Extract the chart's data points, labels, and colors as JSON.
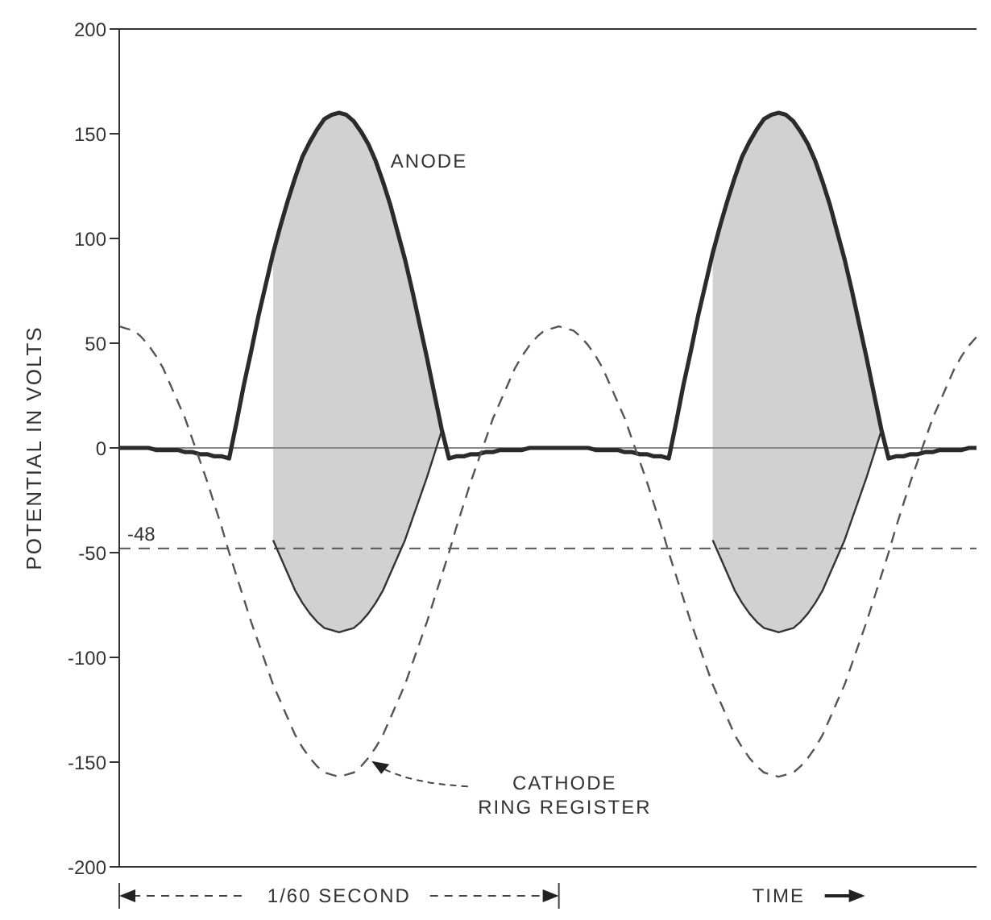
{
  "chart_data": {
    "type": "line",
    "ylabel": "POTENTIAL IN VOLTS",
    "tick_labels": "y",
    "marker": "none",
    "ylim": [
      -200,
      200
    ],
    "yticks": [
      -200,
      -150,
      -100,
      -50,
      0,
      50,
      100,
      150,
      200
    ],
    "categories": [
      null,
      null,
      null,
      null,
      null,
      null,
      null,
      null,
      null,
      null,
      null,
      null,
      null,
      null,
      null,
      null,
      null,
      null,
      null,
      null,
      null,
      null,
      null,
      null,
      null,
      null,
      null,
      null,
      null,
      null,
      null,
      null,
      null,
      null,
      null,
      null,
      null,
      null,
      null,
      null,
      null,
      null,
      null,
      null,
      null,
      null,
      null,
      null,
      null,
      null,
      null,
      null,
      null,
      null,
      null,
      null,
      null,
      null,
      null,
      null,
      null,
      null,
      null,
      null,
      null,
      null,
      null,
      null,
      null,
      null,
      null,
      null,
      null,
      null,
      null,
      null,
      null,
      null,
      null,
      null,
      null,
      null,
      null,
      null,
      null,
      null,
      null,
      null,
      null,
      null,
      null,
      null,
      null,
      null,
      null,
      null,
      null,
      null,
      null,
      null,
      null,
      null,
      null,
      null,
      null,
      null,
      null,
      null,
      null,
      null,
      null,
      null,
      null,
      null,
      null,
      null,
      null,
      null
    ],
    "series": [
      {
        "name": "ANODE",
        "color": "#2b2b2b",
        "line_style": "solid",
        "values": [
          0,
          0,
          0,
          0,
          0,
          -1,
          -1,
          -1,
          -1,
          -2,
          -2,
          -3,
          -3,
          -4,
          -4,
          -5,
          12,
          30,
          46,
          63,
          78,
          93,
          106,
          118,
          129,
          139,
          146,
          152,
          157,
          159,
          160,
          159,
          156,
          151,
          145,
          137,
          127,
          116,
          103,
          90,
          75,
          59,
          43,
          26,
          9,
          -5,
          -4,
          -4,
          -3,
          -3,
          -2,
          -2,
          -1,
          -1,
          -1,
          -1,
          0,
          0,
          0,
          0,
          0,
          0,
          0,
          0,
          0,
          -1,
          -1,
          -1,
          -1,
          -2,
          -2,
          -3,
          -3,
          -4,
          -4,
          -5,
          12,
          30,
          46,
          63,
          78,
          93,
          106,
          118,
          129,
          139,
          146,
          152,
          157,
          159,
          160,
          159,
          156,
          151,
          145,
          137,
          127,
          116,
          103,
          90,
          75,
          59,
          43,
          26,
          9,
          -5,
          -4,
          -4,
          -3,
          -3,
          -2,
          -2,
          -1,
          -1,
          -1,
          -1,
          0,
          0
        ],
        "lower": [
          null,
          null,
          null,
          null,
          null,
          null,
          null,
          null,
          null,
          null,
          null,
          null,
          null,
          null,
          null,
          null,
          null,
          null,
          null,
          null,
          null,
          -44,
          -52,
          -60,
          -68,
          -74,
          -79,
          -83,
          -86,
          -87,
          -88,
          -87,
          -86,
          -83,
          -79,
          -74,
          -68,
          -60,
          -52,
          -44,
          -34,
          -24,
          -14,
          -3,
          8,
          null,
          null,
          null,
          null,
          null,
          null,
          null,
          null,
          null,
          null,
          null,
          null,
          null,
          null,
          null,
          null,
          null,
          null,
          null,
          null,
          null,
          null,
          null,
          null,
          null,
          null,
          null,
          null,
          null,
          null,
          null,
          null,
          null,
          null,
          null,
          null,
          -44,
          -52,
          -60,
          -68,
          -74,
          -79,
          -83,
          -86,
          -87,
          -88,
          -87,
          -86,
          -83,
          -79,
          -74,
          -68,
          -60,
          -52,
          -44,
          -34,
          -24,
          -14,
          -3,
          8,
          null,
          null,
          null,
          null,
          null,
          null,
          null,
          null,
          null,
          null,
          null,
          null,
          null
        ],
        "upper": [
          null,
          null,
          null,
          null,
          null,
          null,
          null,
          null,
          null,
          null,
          null,
          null,
          null,
          null,
          null,
          null,
          null,
          null,
          null,
          null,
          null,
          93,
          106,
          118,
          129,
          139,
          146,
          152,
          157,
          159,
          160,
          159,
          156,
          151,
          145,
          137,
          127,
          116,
          103,
          90,
          75,
          59,
          43,
          26,
          9,
          null,
          null,
          null,
          null,
          null,
          null,
          null,
          null,
          null,
          null,
          null,
          null,
          null,
          null,
          null,
          null,
          null,
          null,
          null,
          null,
          null,
          null,
          null,
          null,
          null,
          null,
          null,
          null,
          null,
          null,
          null,
          null,
          null,
          null,
          null,
          null,
          93,
          106,
          118,
          129,
          139,
          146,
          152,
          157,
          159,
          160,
          159,
          156,
          151,
          145,
          137,
          127,
          116,
          103,
          90,
          75,
          59,
          43,
          26,
          9,
          null,
          null,
          null,
          null,
          null,
          null,
          null,
          null,
          null,
          null,
          null,
          null,
          null
        ]
      },
      {
        "name": "CATHODE RING REGISTER",
        "color": "#555555",
        "line_style": "dashed",
        "values": [
          58,
          57,
          56,
          53,
          49,
          44,
          38,
          30,
          22,
          14,
          4,
          -6,
          -16,
          -27,
          -38,
          -50,
          -61,
          -72,
          -83,
          -93,
          -103,
          -113,
          -121,
          -129,
          -137,
          -143,
          -148,
          -152,
          -155,
          -156,
          -157,
          -156,
          -155,
          -152,
          -148,
          -143,
          -137,
          -129,
          -121,
          -113,
          -103,
          -93,
          -83,
          -72,
          -61,
          -50,
          -38,
          -27,
          -16,
          -6,
          4,
          14,
          22,
          30,
          38,
          44,
          49,
          53,
          56,
          57,
          58,
          57,
          56,
          53,
          49,
          44,
          38,
          30,
          22,
          14,
          4,
          -6,
          -16,
          -27,
          -38,
          -50,
          -61,
          -72,
          -83,
          -93,
          -103,
          -113,
          -121,
          -129,
          -137,
          -143,
          -148,
          -152,
          -155,
          -156,
          -157,
          -156,
          -155,
          -152,
          -148,
          -143,
          -137,
          -129,
          -121,
          -113,
          -103,
          -93,
          -83,
          -72,
          -61,
          -50,
          -38,
          -27,
          -16,
          -6,
          4,
          14,
          22,
          30,
          38,
          44,
          49,
          53
        ]
      },
      {
        "color": "#333333",
        "line_style": "solid",
        "values": [
          null,
          null,
          null,
          null,
          null,
          null,
          null,
          null,
          null,
          null,
          null,
          null,
          null,
          null,
          null,
          null,
          null,
          null,
          null,
          null,
          null,
          -44,
          -52,
          -60,
          -68,
          -74,
          -79,
          -83,
          -86,
          -87,
          -88,
          -87,
          -86,
          -83,
          -79,
          -74,
          -68,
          -60,
          -52,
          -44,
          -34,
          -24,
          -14,
          -3,
          8,
          null,
          null,
          null,
          null,
          null,
          null,
          null,
          null,
          null,
          null,
          null,
          null,
          null,
          null,
          null,
          null,
          null,
          null,
          null,
          null,
          null,
          null,
          null,
          null,
          null,
          null,
          null,
          null,
          null,
          null,
          null,
          null,
          null,
          null,
          null,
          null,
          -44,
          -52,
          -60,
          -68,
          -74,
          -79,
          -83,
          -86,
          -87,
          -88,
          -87,
          -86,
          -83,
          -79,
          -74,
          -68,
          -60,
          -52,
          -44,
          -34,
          -24,
          -14,
          -3,
          8,
          null,
          null,
          null,
          null,
          null,
          null,
          null,
          null,
          null,
          null,
          null,
          null,
          null
        ]
      }
    ],
    "ref_lines": [
      {
        "axis": "y",
        "value": -48,
        "label": "-48",
        "color": "#555555",
        "line_style": "dashed"
      },
      {
        "axis": "y",
        "value": 0,
        "label": null,
        "color": "#888888",
        "line_style": "solid"
      }
    ],
    "annotations": [
      "1/60 SECOND",
      "TIME"
    ]
  }
}
